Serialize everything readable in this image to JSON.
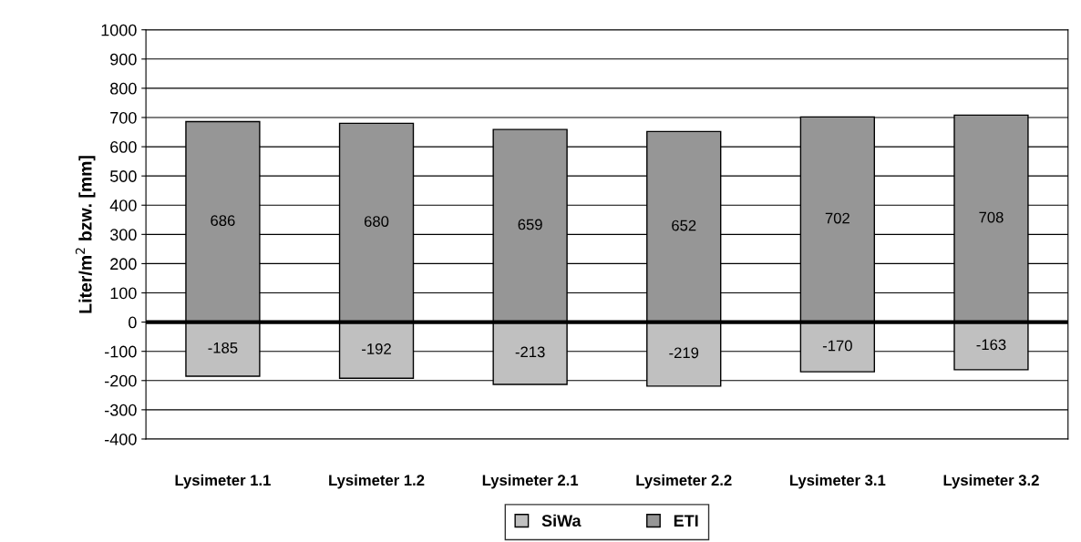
{
  "chart_data": {
    "type": "bar",
    "ylabel": "Liter/m$^{2}$ bzw. [mm]",
    "categories": [
      "Lysimeter 1.1",
      "Lysimeter 1.2",
      "Lysimeter 2.1",
      "Lysimeter 2.2",
      "Lysimeter 3.1",
      "Lysimeter 3.2"
    ],
    "stacked": true,
    "series": [
      {
        "name": "SiWa",
        "color": "#c0c0c0",
        "values": [
          -185,
          -192,
          -213,
          -219,
          -170,
          -163
        ]
      },
      {
        "name": "ETI",
        "color": "#969696",
        "values": [
          686,
          680,
          659,
          652,
          702,
          708
        ]
      }
    ],
    "ylim": [
      -400,
      1000
    ],
    "yticks": [
      -400,
      -300,
      -200,
      -100,
      0,
      100,
      200,
      300,
      400,
      500,
      600,
      700,
      800,
      900,
      1000
    ],
    "grid": "y",
    "legend": "bottom",
    "data_labels": true
  }
}
